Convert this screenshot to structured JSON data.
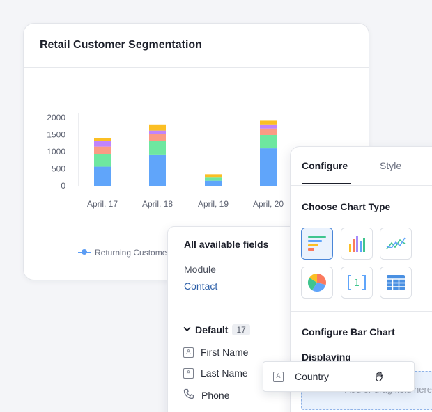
{
  "chart_card": {
    "title": "Retail Customer Segmentation",
    "legend_label": "Returning Custome"
  },
  "chart_data": {
    "type": "bar",
    "stacked": true,
    "categories": [
      "April, 17",
      "April, 18",
      "April, 19",
      "April, 20"
    ],
    "series": [
      {
        "color": "#60a5fa",
        "values": [
          560,
          900,
          150,
          1100
        ]
      },
      {
        "color": "#6ee7a0",
        "values": [
          370,
          420,
          90,
          390
        ]
      },
      {
        "color": "#fb9b84",
        "values": [
          220,
          190,
          0,
          190
        ]
      },
      {
        "color": "#c084fc",
        "values": [
          170,
          110,
          0,
          120
        ]
      },
      {
        "color": "#fbbf24",
        "values": [
          80,
          180,
          100,
          110
        ]
      }
    ],
    "y_ticks": [
      0,
      500,
      1000,
      1500,
      2000
    ],
    "ylim": [
      0,
      2000
    ],
    "grid": false
  },
  "fields_panel": {
    "title": "All available fields",
    "module_label": "Module",
    "module_value": "Contact",
    "group_name": "Default",
    "group_count": "17",
    "fields": [
      {
        "label": "First Name",
        "icon": "text-field-icon"
      },
      {
        "label": "Last Name",
        "icon": "text-field-icon"
      },
      {
        "label": "Phone",
        "icon": "phone-icon"
      }
    ]
  },
  "config_panel": {
    "tabs": [
      "Configure",
      "Style"
    ],
    "choose_type_heading": "Choose Chart Type",
    "chart_types": [
      "horizontal-bar",
      "vertical-bar",
      "line",
      "pie",
      "number",
      "table"
    ],
    "number_glyph": "1",
    "configure_heading": "Configure Bar Chart",
    "displaying_label": "Displaying",
    "drop_placeholder": "Add or drag field here"
  },
  "drag_chip": {
    "label": "Country"
  }
}
